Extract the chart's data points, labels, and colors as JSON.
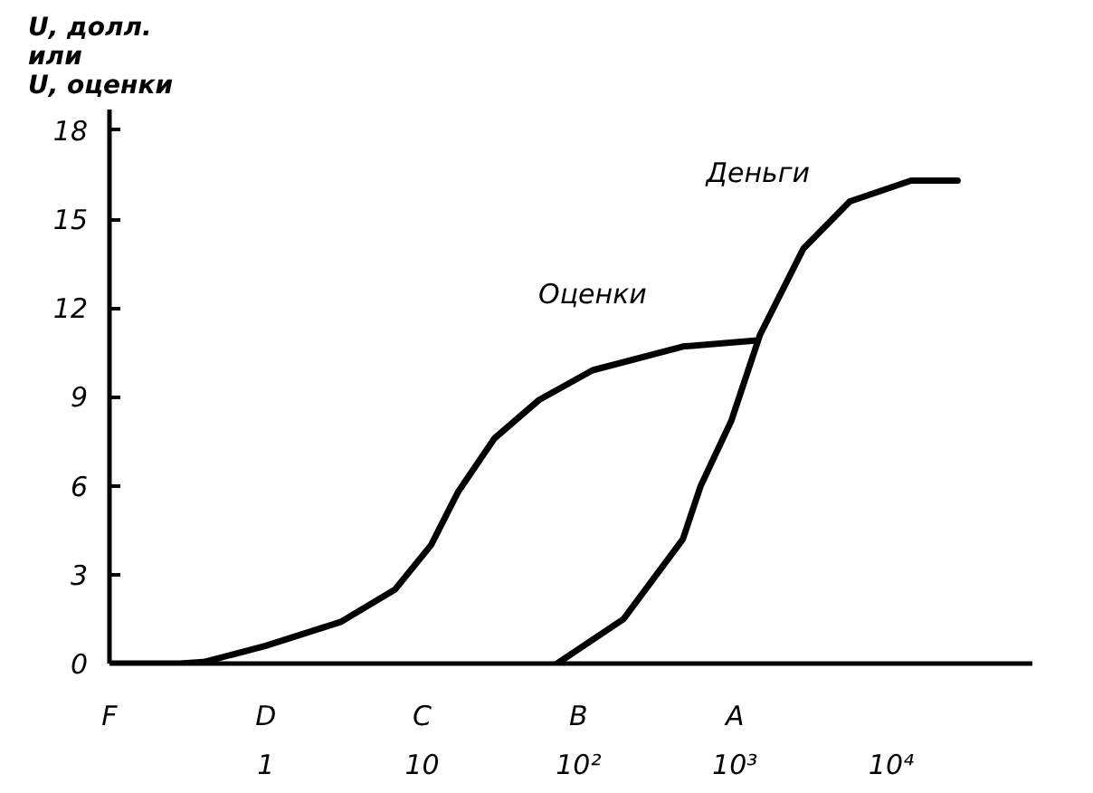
{
  "chart_data": {
    "type": "line",
    "ylabel": "U, долл.\nили\nU, оценки",
    "log": "x",
    "xlim": [
      0.1,
      80000
    ],
    "ylim": [
      0,
      18.7
    ],
    "xticks": [
      1,
      10,
      {
        "value": 100,
        "label": "10²"
      },
      {
        "value": 1000,
        "label": "10³"
      },
      {
        "value": 10000,
        "label": "10⁴"
      }
    ],
    "yticks": [
      0,
      3,
      6,
      9,
      12,
      15,
      18
    ],
    "grid": false,
    "line_style": "solid",
    "series": [
      {
        "name": "Оценки",
        "color": "#000000",
        "x": [
          0.1,
          0.28,
          0.4,
          1,
          3,
          6.7,
          11.4,
          17,
          29,
          56,
          123,
          465,
          1340
        ],
        "values": [
          0,
          0,
          0.05,
          0.6,
          1.4,
          2.5,
          4.0,
          5.8,
          7.6,
          8.9,
          9.9,
          10.7,
          10.9
        ]
      },
      {
        "name": "Деньги",
        "color": "#000000",
        "x": [
          73,
          194,
          465,
          605,
          950,
          1450,
          2740,
          5440,
          13400,
          26600
        ],
        "values": [
          0,
          1.5,
          4.2,
          6.0,
          8.2,
          11.1,
          14.0,
          15.6,
          16.3,
          16.3
        ]
      }
    ],
    "annotations": [
      "F",
      "D",
      "C",
      "B",
      "A"
    ]
  }
}
